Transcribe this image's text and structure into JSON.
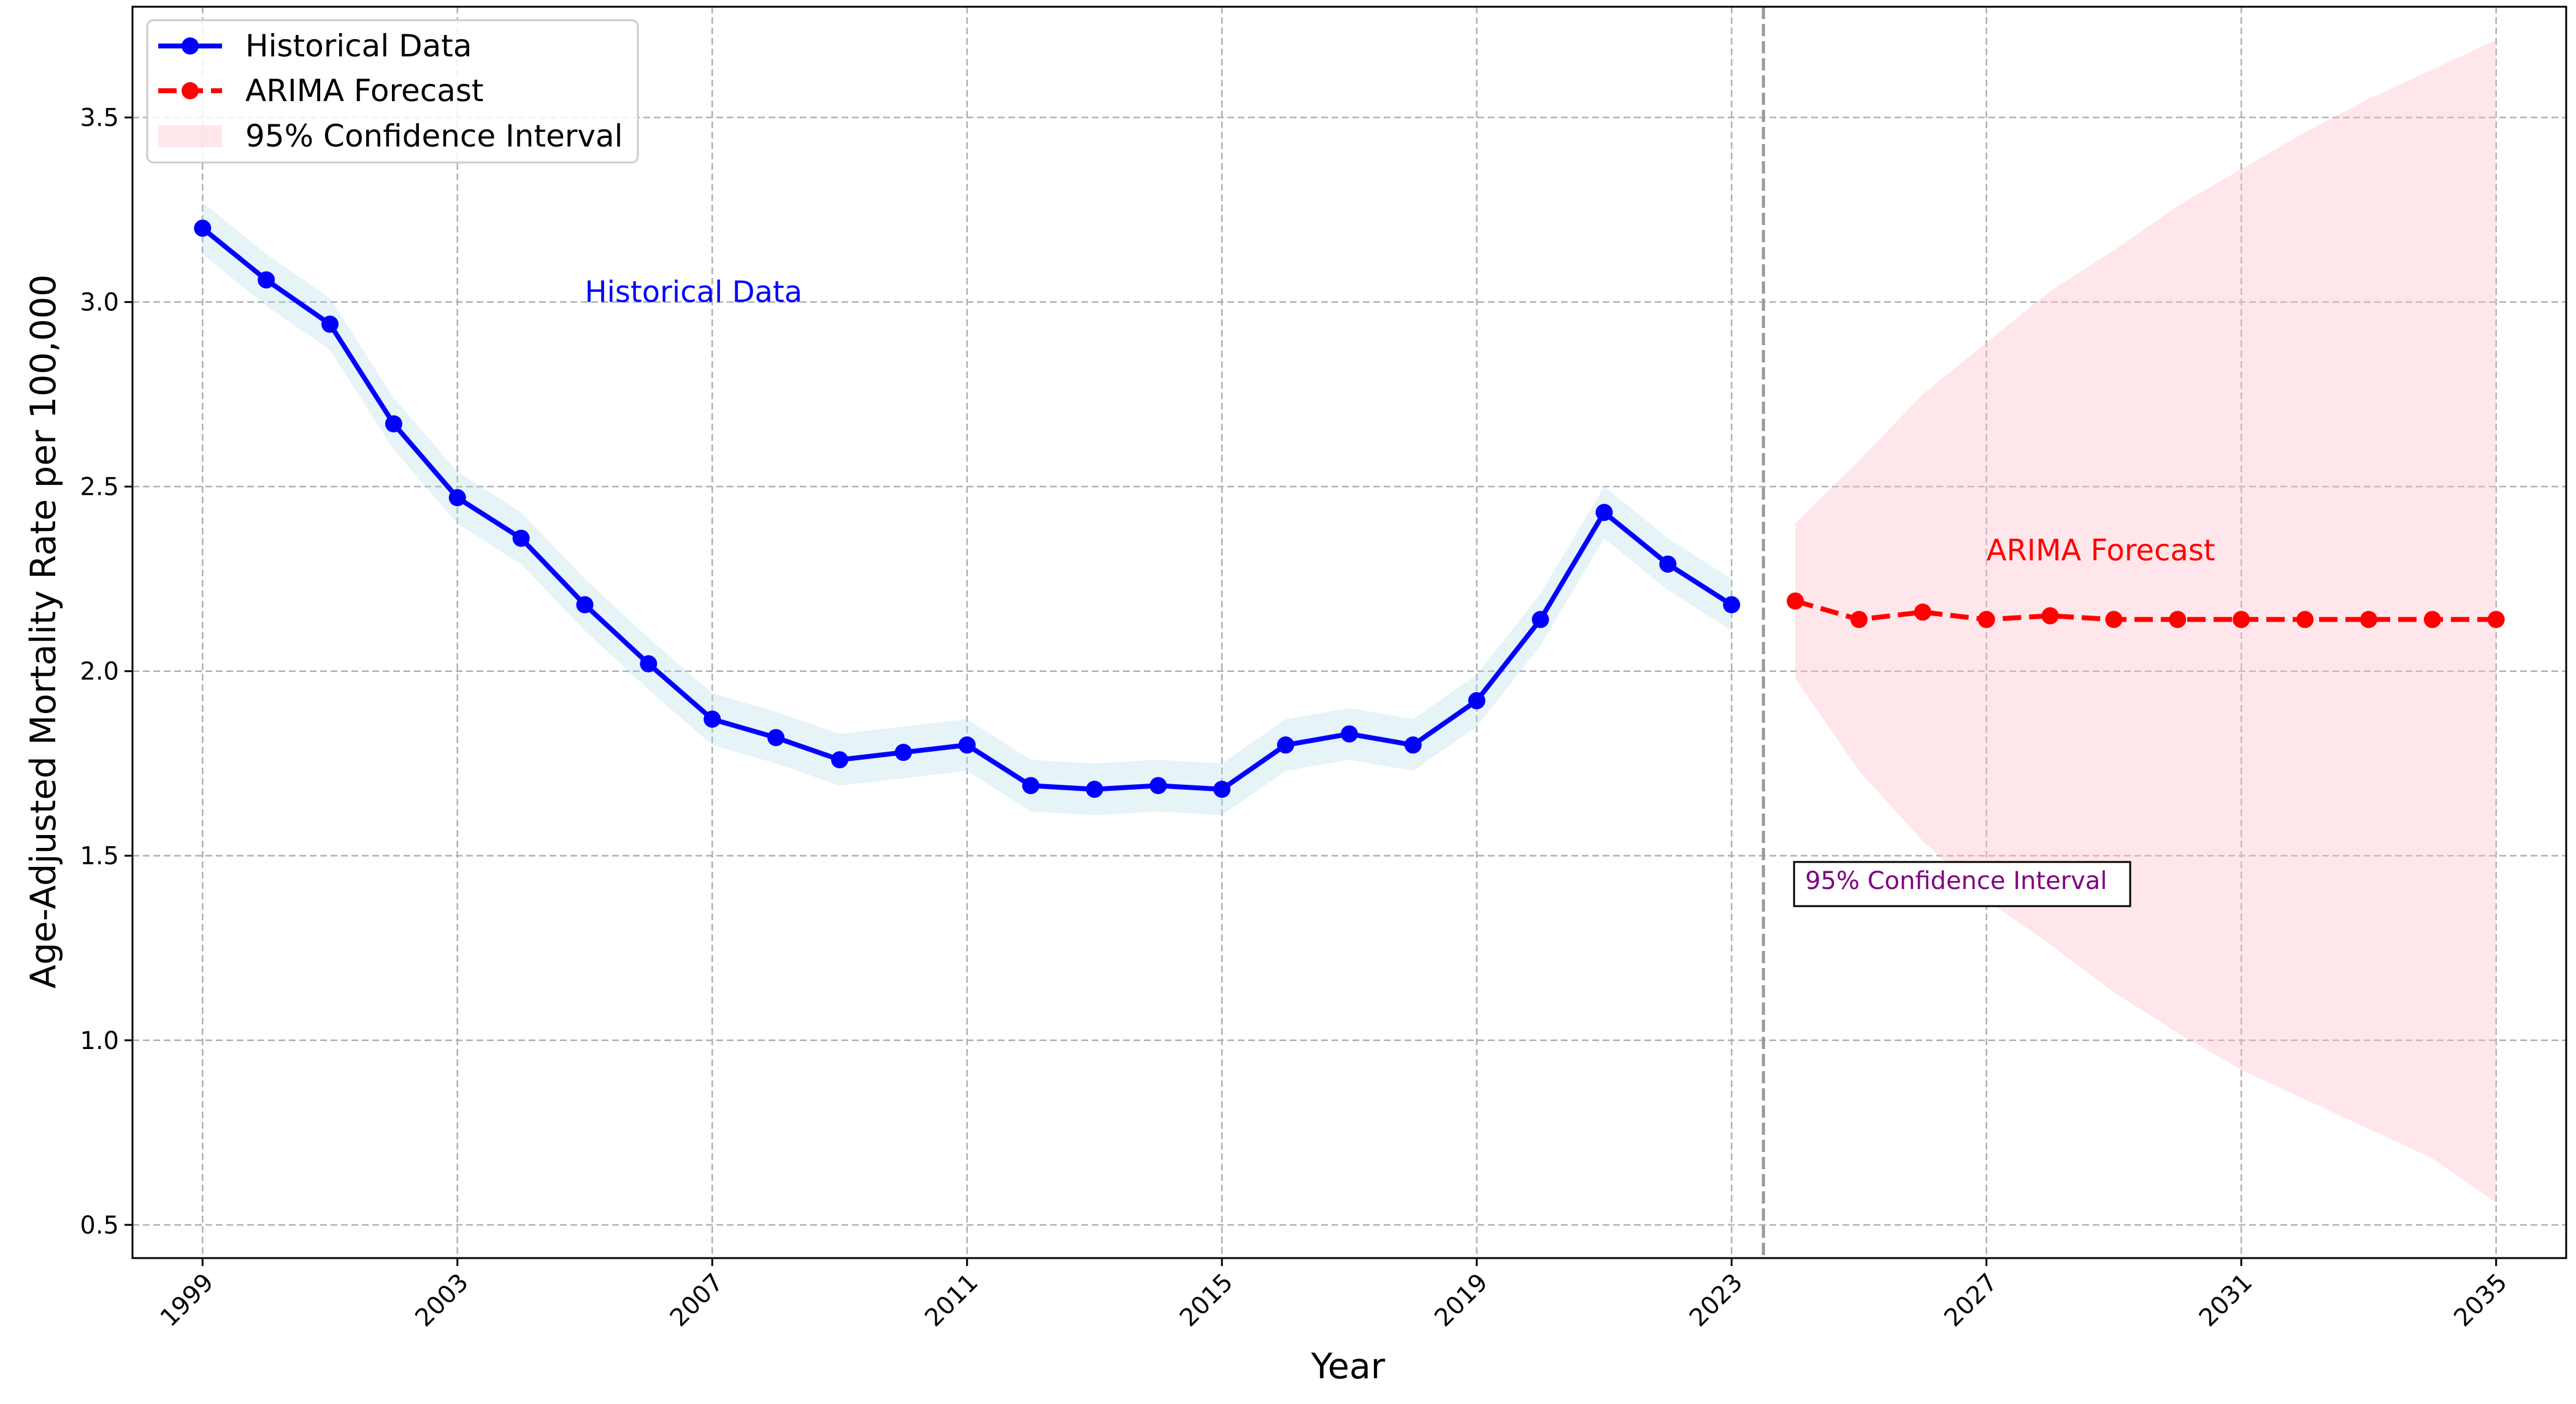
{
  "chart_data": {
    "type": "line",
    "title": "",
    "xlabel": "Year",
    "ylabel": "Age-Adjusted Mortality Rate per 100,000",
    "xlim": [
      1997.9,
      2036.1
    ],
    "ylim": [
      0.41,
      3.8
    ],
    "x_ticks": [
      1999,
      2003,
      2007,
      2011,
      2015,
      2019,
      2023,
      2027,
      2031,
      2035
    ],
    "y_ticks": [
      "0.5",
      "1.0",
      "1.5",
      "2.0",
      "2.5",
      "3.0",
      "3.5"
    ],
    "grid": true,
    "legend_position": "top-left",
    "series": [
      {
        "name": "Historical Data",
        "color": "#0000ff",
        "style": "solid",
        "marker": "circle",
        "x": [
          1999,
          2000,
          2001,
          2002,
          2003,
          2004,
          2005,
          2006,
          2007,
          2008,
          2009,
          2010,
          2011,
          2012,
          2013,
          2014,
          2015,
          2016,
          2017,
          2018,
          2019,
          2020,
          2021,
          2022,
          2023
        ],
        "y": [
          3.2,
          3.06,
          2.94,
          2.67,
          2.47,
          2.36,
          2.18,
          2.02,
          1.87,
          1.82,
          1.76,
          1.78,
          1.8,
          1.69,
          1.68,
          1.69,
          1.68,
          1.8,
          1.83,
          1.8,
          1.92,
          2.14,
          2.43,
          2.29,
          2.18
        ],
        "band_halfwidth": 0.07,
        "band_color": "#add8e6"
      },
      {
        "name": "ARIMA Forecast",
        "color": "#ff0000",
        "style": "dashed",
        "marker": "circle",
        "x": [
          2024,
          2025,
          2026,
          2027,
          2028,
          2029,
          2030,
          2031,
          2032,
          2033,
          2034,
          2035
        ],
        "y": [
          2.19,
          2.14,
          2.16,
          2.14,
          2.15,
          2.14,
          2.14,
          2.14,
          2.14,
          2.14,
          2.14,
          2.14
        ]
      },
      {
        "name": "95% Confidence Interval",
        "type": "band",
        "color": "#ffc0cb",
        "x": [
          2024,
          2025,
          2026,
          2027,
          2028,
          2029,
          2030,
          2031,
          2032,
          2033,
          2034,
          2035
        ],
        "lower": [
          1.98,
          1.73,
          1.54,
          1.38,
          1.26,
          1.13,
          1.02,
          0.92,
          0.84,
          0.76,
          0.68,
          0.56
        ],
        "upper": [
          2.4,
          2.57,
          2.75,
          2.89,
          3.03,
          3.14,
          3.26,
          3.36,
          3.46,
          3.55,
          3.63,
          3.71
        ]
      }
    ],
    "divider_x": 2023.5,
    "annotations": [
      {
        "text": "Historical Data",
        "x": 2005,
        "y": 3.0,
        "color": "#0000ff"
      },
      {
        "text": "ARIMA Forecast",
        "x": 2027,
        "y": 2.3,
        "color": "#ff0000"
      },
      {
        "text": "95% Confidence Interval",
        "x": 2024,
        "y": 1.41,
        "color": "#800080",
        "boxed": true
      }
    ],
    "legend": [
      "Historical Data",
      "ARIMA Forecast",
      "95% Confidence Interval"
    ]
  }
}
